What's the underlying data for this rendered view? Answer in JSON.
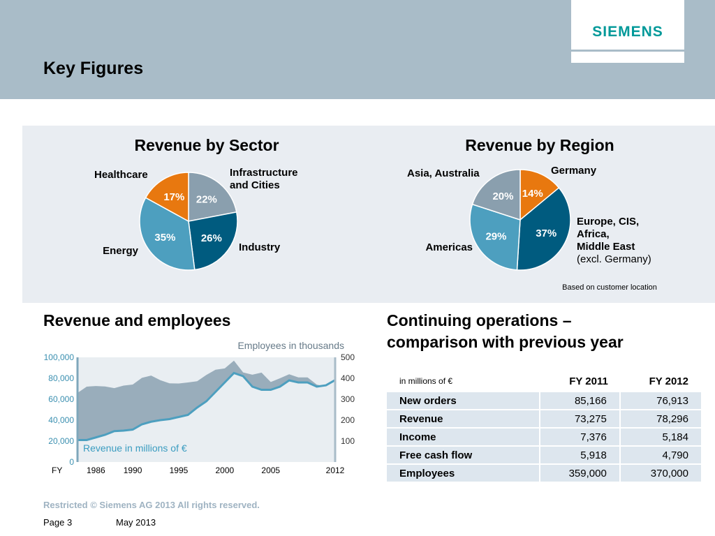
{
  "header": {
    "title": "Key Figures",
    "logo": "SIEMENS"
  },
  "colors": {
    "header_bg": "#a9bcc8",
    "panel_bg": "#e9edf2",
    "orange": "#e8780f",
    "gray": "#8a9fae",
    "dark_blue": "#005b7f",
    "teal": "#4d9fbf",
    "brand": "#009999",
    "table_row": "#dde6ee"
  },
  "sector": {
    "title": "Revenue by Sector",
    "slices": [
      {
        "label_lines": [
          "Infrastructure",
          "and Cities"
        ],
        "value": 22,
        "pct": "22%",
        "color": "#8a9fae"
      },
      {
        "label_lines": [
          "Industry"
        ],
        "value": 26,
        "pct": "26%",
        "color": "#005b7f"
      },
      {
        "label_lines": [
          "Energy"
        ],
        "value": 35,
        "pct": "35%",
        "color": "#4d9fbf"
      },
      {
        "label_lines": [
          "Healthcare"
        ],
        "value": 17,
        "pct": "17%",
        "color": "#e8780f"
      }
    ]
  },
  "region": {
    "title": "Revenue by Region",
    "note": "Based on customer location",
    "slices": [
      {
        "label_lines": [
          "Germany"
        ],
        "value": 14,
        "pct": "14%",
        "color": "#e8780f"
      },
      {
        "label_lines": [
          "Europe, CIS,",
          "Africa,",
          "Middle East",
          "(excl. Germany)"
        ],
        "value": 37,
        "pct": "37%",
        "color": "#005b7f"
      },
      {
        "label_lines": [
          "Americas"
        ],
        "value": 29,
        "pct": "29%",
        "color": "#4d9fbf"
      },
      {
        "label_lines": [
          "Asia, Australia"
        ],
        "value": 20,
        "pct": "20%",
        "color": "#8a9fae"
      }
    ]
  },
  "revenue_employees": {
    "title": "Revenue and employees",
    "employees_label": "Employees in thousands",
    "revenue_label": "Revenue in millions of €",
    "x_prefix": "FY"
  },
  "chart_data": {
    "type": "area",
    "title": "Revenue and employees",
    "x": [
      1984,
      1985,
      1986,
      1987,
      1988,
      1989,
      1990,
      1991,
      1992,
      1993,
      1994,
      1995,
      1996,
      1997,
      1998,
      1999,
      2000,
      2001,
      2002,
      2003,
      2004,
      2005,
      2006,
      2007,
      2008,
      2009,
      2010,
      2011,
      2012
    ],
    "x_ticks": [
      "1986",
      "1990",
      "1995",
      "2000",
      "2005",
      "2012"
    ],
    "series": [
      {
        "name": "Employees in thousands",
        "axis": "right",
        "values": [
          330,
          360,
          363,
          361,
          353,
          365,
          370,
          402,
          413,
          391,
          376,
          375,
          380,
          386,
          416,
          441,
          447,
          484,
          428,
          417,
          427,
          382,
          400,
          419,
          404,
          404,
          370,
          359,
          370
        ]
      },
      {
        "name": "Revenue in millions of €",
        "axis": "left",
        "values": [
          21000,
          21000,
          23500,
          26000,
          29500,
          30000,
          31000,
          36000,
          38500,
          40000,
          41000,
          43000,
          45000,
          52000,
          58000,
          67000,
          76000,
          85000,
          82000,
          72000,
          69000,
          69000,
          72000,
          78000,
          76000,
          76000,
          72000,
          73275,
          78296
        ]
      }
    ],
    "y_left": {
      "ticks": [
        "0",
        "20,000",
        "40,000",
        "60,000",
        "80,000",
        "100,000"
      ],
      "ylim": [
        0,
        100000
      ]
    },
    "y_right": {
      "ticks": [
        "100",
        "200",
        "300",
        "400",
        "500"
      ],
      "ylim": [
        0,
        500
      ]
    }
  },
  "operations": {
    "title_lines": [
      "Continuing operations –",
      "comparison with previous year"
    ],
    "unit": "in millions of €",
    "columns": [
      "FY 2011",
      "FY 2012"
    ],
    "rows": [
      {
        "metric": "New orders",
        "fy2011": "85,166",
        "fy2012": "76,913"
      },
      {
        "metric": "Revenue",
        "fy2011": "73,275",
        "fy2012": "78,296"
      },
      {
        "metric": "Income",
        "fy2011": "7,376",
        "fy2012": "5,184"
      },
      {
        "metric": "Free cash flow",
        "fy2011": "5,918",
        "fy2012": "4,790"
      },
      {
        "metric": "Employees",
        "fy2011": "359,000",
        "fy2012": "370,000"
      }
    ]
  },
  "footer": {
    "copyright": "Restricted © Siemens AG 2013 All rights reserved.",
    "page": "Page 3",
    "date": "May 2013"
  }
}
